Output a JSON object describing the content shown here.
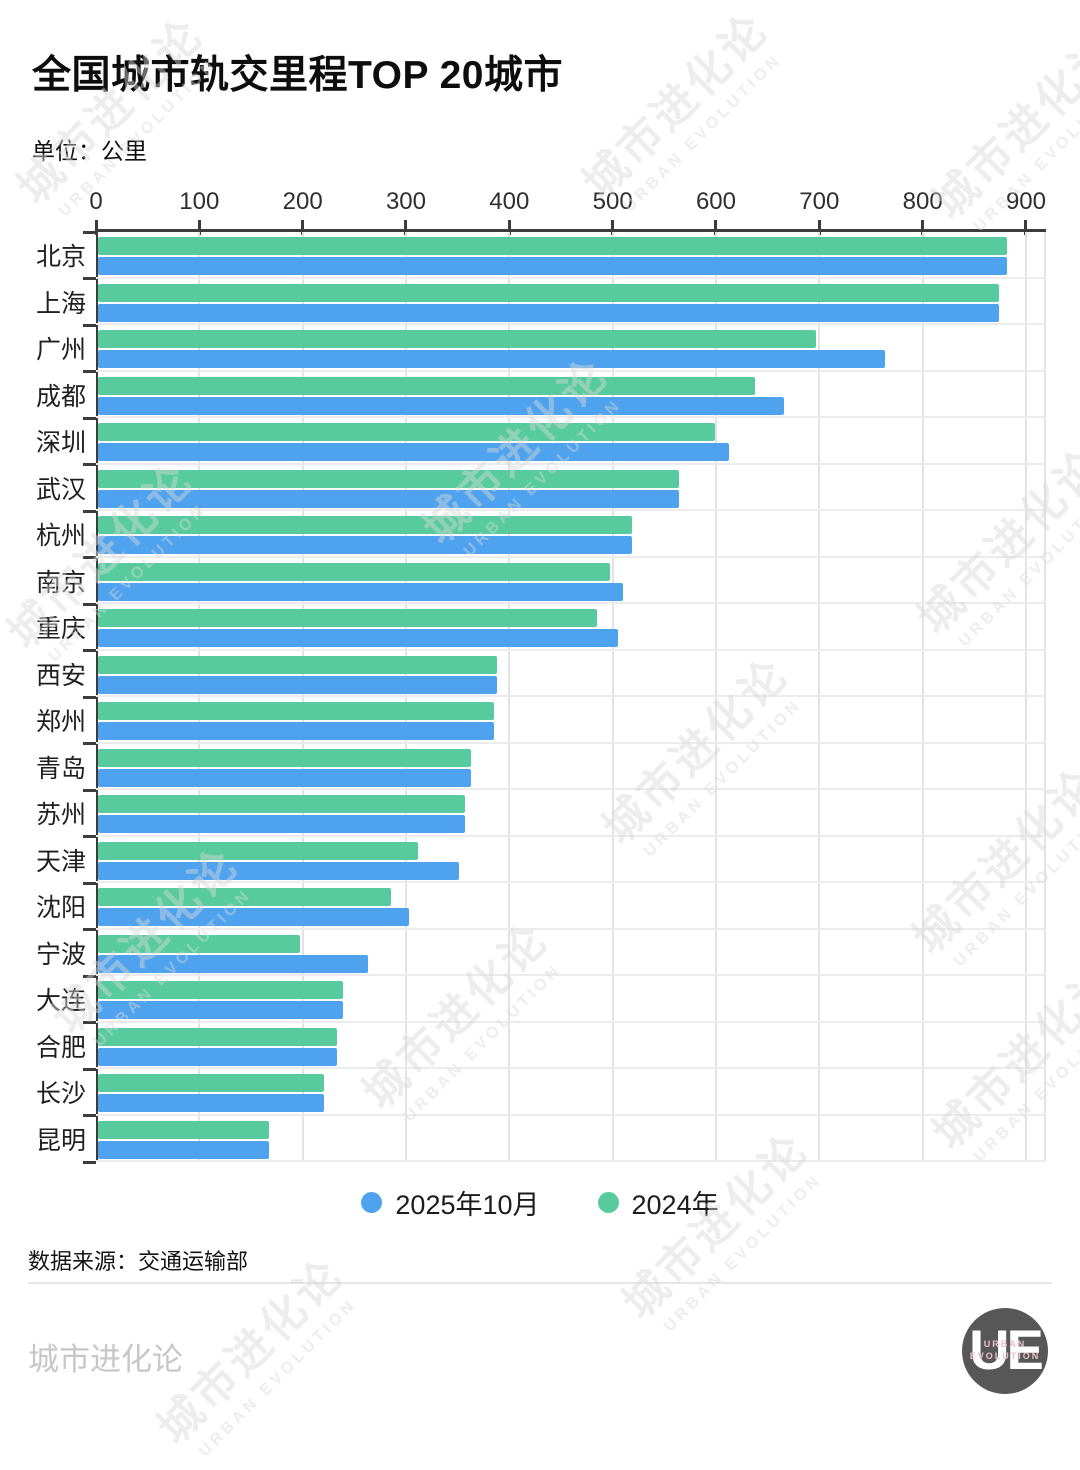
{
  "title": "全国城市轨交里程TOP 20城市",
  "subtitle": "单位：公里",
  "chart_data": {
    "type": "bar",
    "orientation": "horizontal",
    "unit": "公里",
    "xlim": [
      0,
      900
    ],
    "x_ticks": [
      0,
      100,
      200,
      300,
      400,
      500,
      600,
      700,
      800,
      900
    ],
    "grid": true,
    "legend_position": "bottom",
    "categories": [
      "北京",
      "上海",
      "广州",
      "成都",
      "深圳",
      "武汉",
      "杭州",
      "南京",
      "重庆",
      "西安",
      "郑州",
      "青岛",
      "苏州",
      "天津",
      "沈阳",
      "宁波",
      "大连",
      "合肥",
      "长沙",
      "昆明"
    ],
    "series": [
      {
        "name": "2025年10月",
        "color": "#4fa3ee",
        "values": [
          880,
          872,
          762,
          664,
          611,
          562,
          517,
          508,
          503,
          386,
          383,
          361,
          355,
          349,
          301,
          261,
          237,
          231,
          219,
          165
        ]
      },
      {
        "name": "2024年",
        "color": "#57cb9e",
        "values": [
          880,
          872,
          695,
          636,
          597,
          562,
          517,
          495,
          483,
          386,
          383,
          361,
          355,
          310,
          284,
          195,
          237,
          231,
          219,
          165
        ]
      }
    ]
  },
  "legend": {
    "items": [
      {
        "label": "2025年10月",
        "color": "#4fa3ee"
      },
      {
        "label": "2024年",
        "color": "#57cb9e"
      }
    ]
  },
  "footer": {
    "source": "数据来源：交通运输部",
    "brand": "城市进化论"
  },
  "logo": {
    "initials": "UE",
    "line1": "URBAN",
    "line2": "EVOLUTION"
  },
  "watermark": {
    "cn": "城市进化论",
    "en": "URBAN EVOLUTION"
  }
}
